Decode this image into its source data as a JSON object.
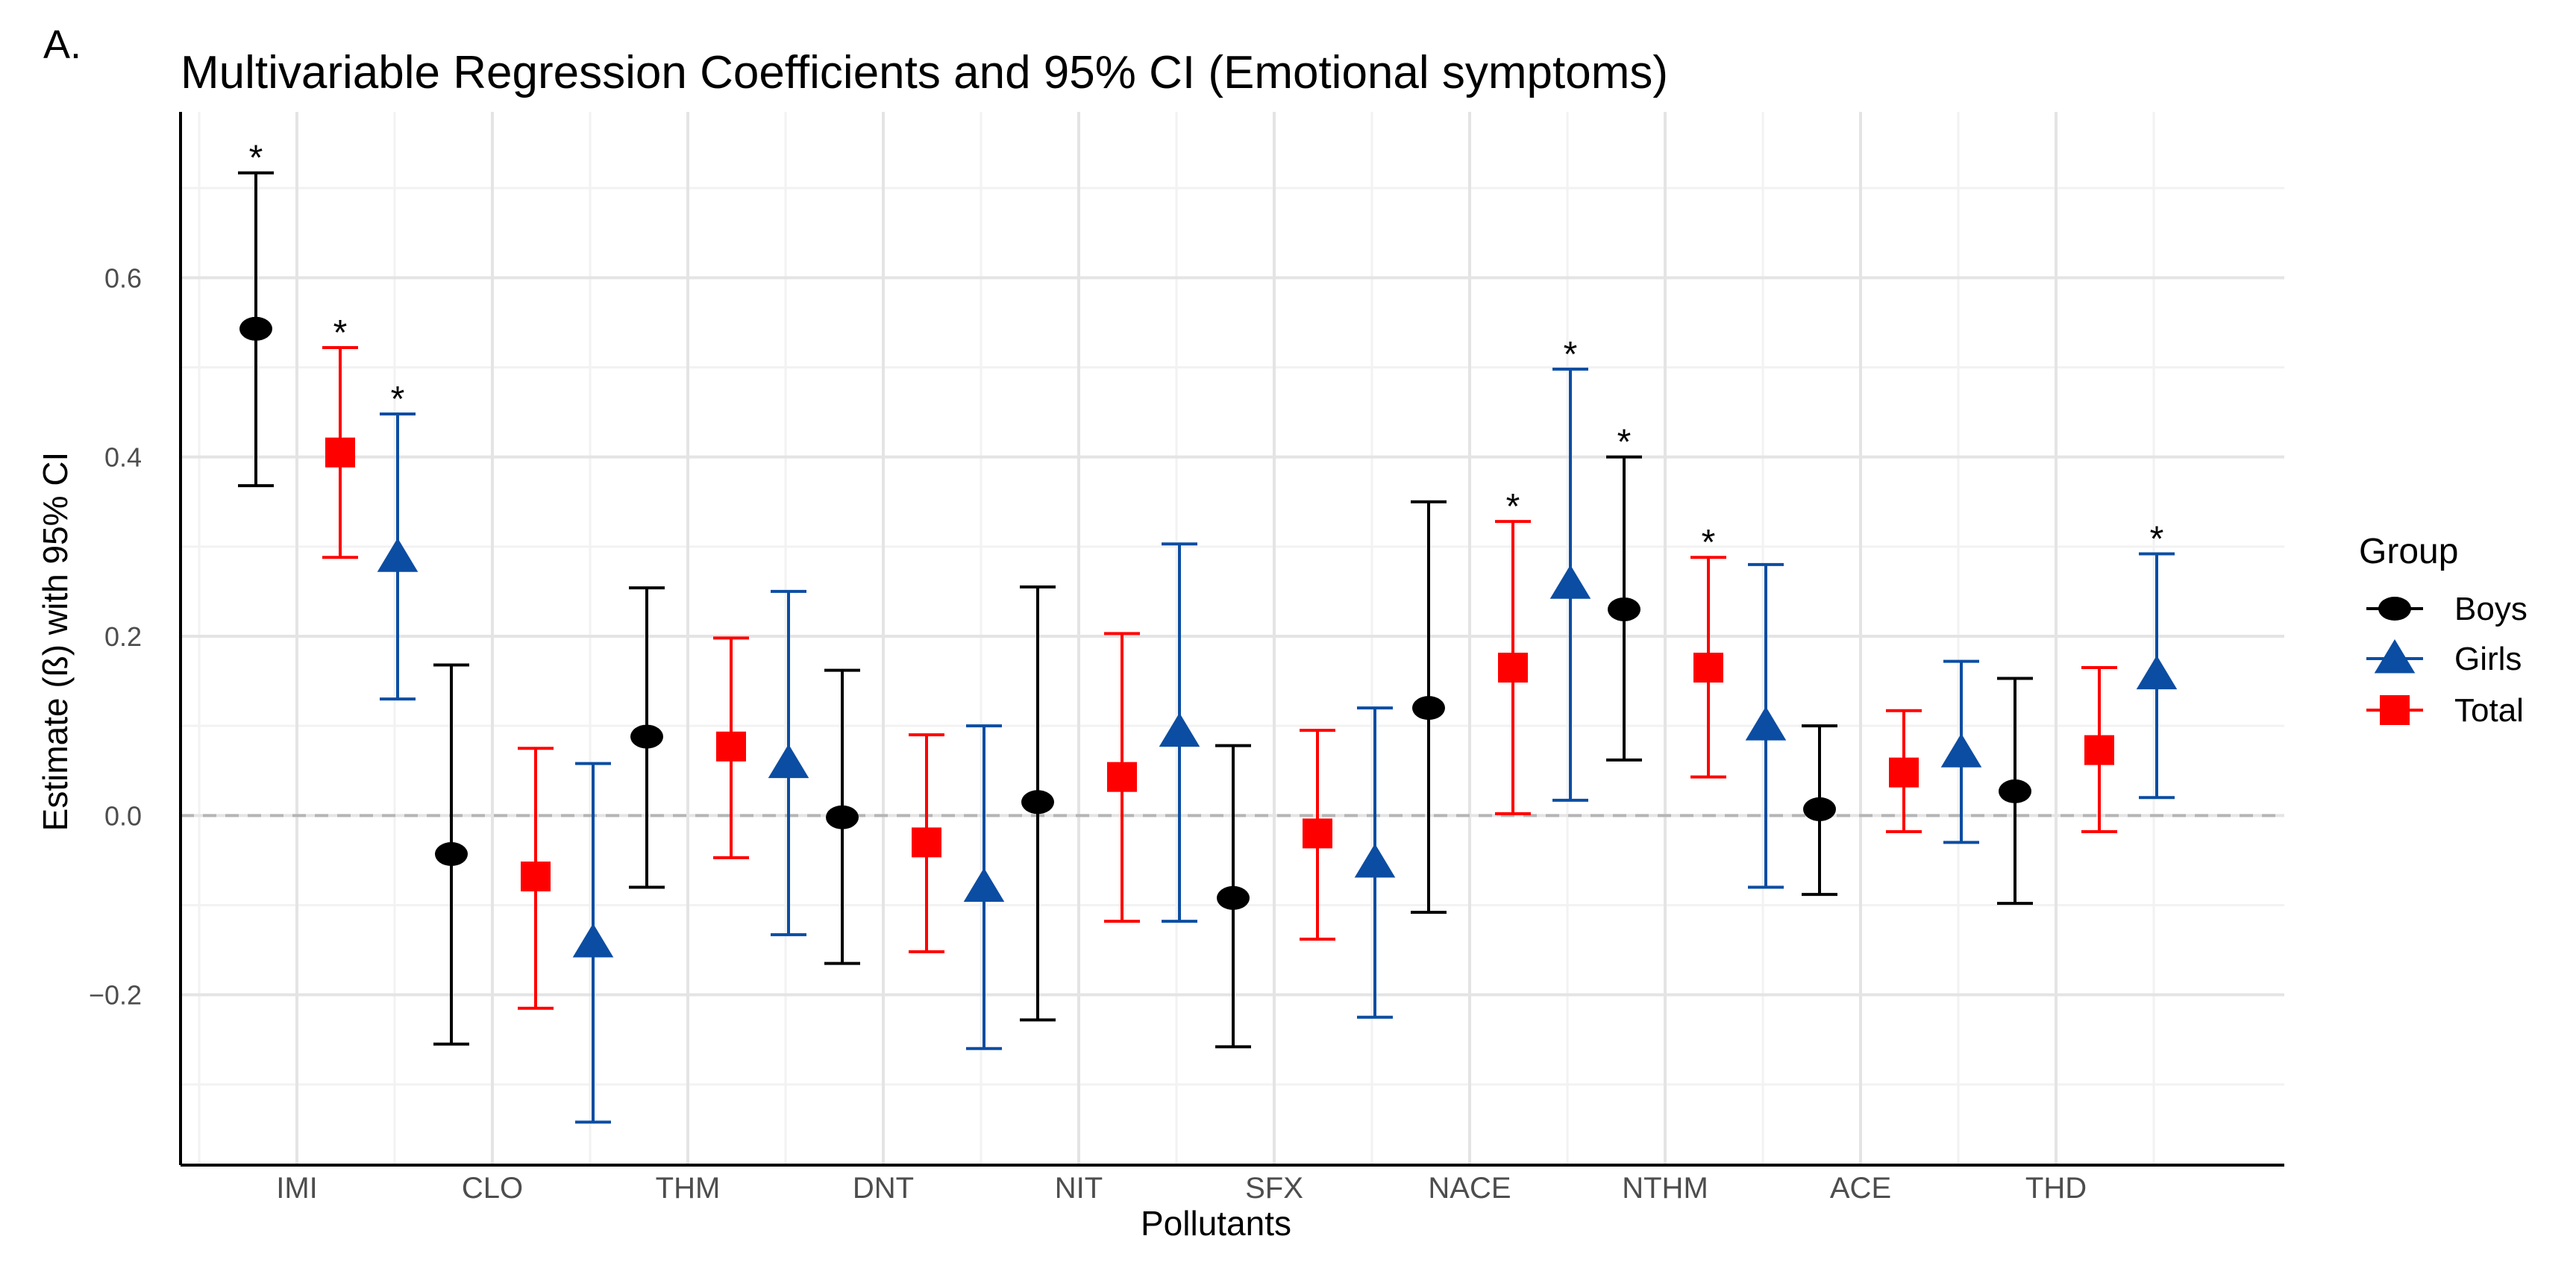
{
  "panel_label": "A.",
  "chart_data": {
    "type": "errorbar",
    "title": "Multivariable Regression Coefficients and 95% CI (Emotional symptoms)",
    "xlabel": "Pollutants",
    "ylabel": "Estimate (ß) with 95% CI",
    "ylim": [
      -0.39,
      0.785
    ],
    "yticks": [
      -0.2,
      0.0,
      0.2,
      0.4,
      0.6
    ],
    "ytick_labels": [
      "−0.2",
      "0.0",
      "0.2",
      "0.4",
      "0.6"
    ],
    "grid": true,
    "reference_line": 0,
    "significance_marker": "*",
    "legend": {
      "title": "Group",
      "position": "right"
    },
    "categories": [
      "IMI",
      "CLO",
      "THM",
      "DNT",
      "NIT",
      "SFX",
      "NACE",
      "NTHM",
      "ACE",
      "THD"
    ],
    "series": [
      {
        "name": "Boys",
        "color": "#000000",
        "marker": "circle",
        "estimates": [
          0.543,
          -0.043,
          0.088,
          -0.002,
          0.015,
          -0.092,
          0.12,
          0.23,
          0.007,
          0.027
        ],
        "lower": [
          0.368,
          -0.255,
          -0.08,
          -0.165,
          -0.228,
          -0.258,
          -0.108,
          0.062,
          -0.088,
          -0.098
        ],
        "upper": [
          0.717,
          0.168,
          0.254,
          0.162,
          0.255,
          0.078,
          0.35,
          0.4,
          0.1,
          0.153
        ],
        "significant": [
          true,
          false,
          false,
          false,
          false,
          false,
          false,
          true,
          false,
          false
        ]
      },
      {
        "name": "Girls",
        "color": "#0B4DA2",
        "marker": "triangle",
        "estimates": [
          0.288,
          -0.142,
          0.058,
          -0.08,
          0.093,
          -0.053,
          0.258,
          0.1,
          0.07,
          0.157
        ],
        "lower": [
          0.13,
          -0.342,
          -0.133,
          -0.26,
          -0.118,
          -0.225,
          0.017,
          -0.08,
          -0.03,
          0.02
        ],
        "upper": [
          0.448,
          0.058,
          0.25,
          0.1,
          0.303,
          0.12,
          0.498,
          0.28,
          0.172,
          0.292
        ],
        "significant": [
          true,
          false,
          false,
          false,
          false,
          false,
          true,
          false,
          false,
          true
        ]
      },
      {
        "name": "Total",
        "color": "#FF0000",
        "marker": "square",
        "estimates": [
          0.405,
          -0.068,
          0.077,
          -0.03,
          0.043,
          -0.02,
          0.165,
          0.165,
          0.048,
          0.073
        ],
        "lower": [
          0.288,
          -0.215,
          -0.047,
          -0.152,
          -0.118,
          -0.138,
          0.002,
          0.043,
          -0.018,
          -0.018
        ],
        "upper": [
          0.522,
          0.075,
          0.198,
          0.09,
          0.203,
          0.095,
          0.328,
          0.288,
          0.117,
          0.165
        ],
        "significant": [
          true,
          false,
          false,
          false,
          false,
          false,
          true,
          true,
          false,
          false
        ]
      }
    ],
    "legend_order": [
      "Boys",
      "Girls",
      "Total"
    ]
  }
}
